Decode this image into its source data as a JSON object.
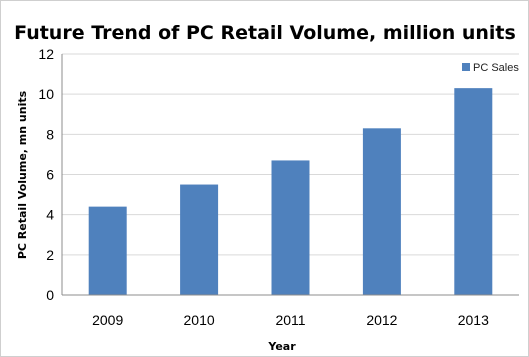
{
  "chart_data": {
    "type": "bar",
    "title": "Future Trend of PC Retail Volume, million units",
    "xlabel": "Year",
    "ylabel": "PC Retail Volume, mn units",
    "categories": [
      "2009",
      "2010",
      "2011",
      "2012",
      "2013"
    ],
    "series": [
      {
        "name": "PC Sales",
        "values": [
          4.4,
          5.5,
          6.7,
          8.3,
          10.3
        ],
        "color": "#4f81bd"
      }
    ],
    "ylim": [
      0,
      12
    ],
    "yticks": [
      0,
      2,
      4,
      6,
      8,
      10,
      12
    ],
    "grid": true,
    "legend_position": "top-right"
  }
}
